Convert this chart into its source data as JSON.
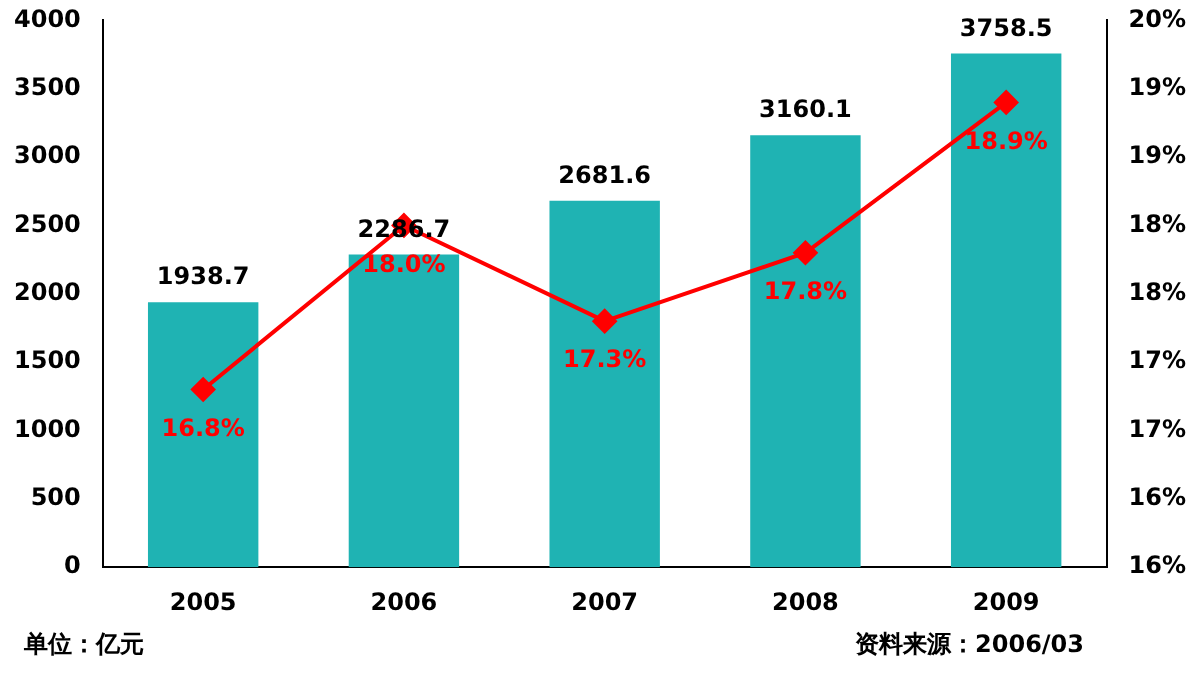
{
  "chart_data": {
    "type": "bar",
    "categories": [
      "2005",
      "2006",
      "2007",
      "2008",
      "2009"
    ],
    "series": [
      {
        "color": "#1fb3b3",
        "values": [
          1938.7,
          2286.7,
          2681.6,
          3160.1,
          3758.5
        ]
      },
      {
        "type": "line",
        "axis": "y2",
        "color": "#ff0000",
        "values": [
          16.8,
          18.0,
          17.3,
          17.8,
          18.9
        ],
        "value_labels": [
          "16.8%",
          "18.0%",
          "17.3%",
          "17.8%",
          "18.9%"
        ]
      }
    ],
    "value_labels": [
      "1938.7",
      "2286.7",
      "2681.6",
      "3160.1",
      "3758.5"
    ],
    "ylim": [
      0,
      4000
    ],
    "yticks": [
      0,
      500,
      1000,
      1500,
      2000,
      2500,
      3000,
      3500,
      4000
    ],
    "y2lim": [
      15.5,
      19.5
    ],
    "y2ticks": [
      {
        "value": 15.5,
        "label": "16%"
      },
      {
        "value": 16,
        "label": "16%"
      },
      {
        "value": 16.5,
        "label": "17%"
      },
      {
        "value": 17,
        "label": "17%"
      },
      {
        "value": 17.5,
        "label": "18%"
      },
      {
        "value": 18,
        "label": "18%"
      },
      {
        "value": 18.5,
        "label": "19%"
      },
      {
        "value": 19,
        "label": "19%"
      },
      {
        "value": 19.5,
        "label": "20%"
      }
    ],
    "marker": "diamond",
    "grid": false,
    "legend": false,
    "annotations": [
      "单位：亿元",
      "资料来源：2006/03"
    ]
  }
}
